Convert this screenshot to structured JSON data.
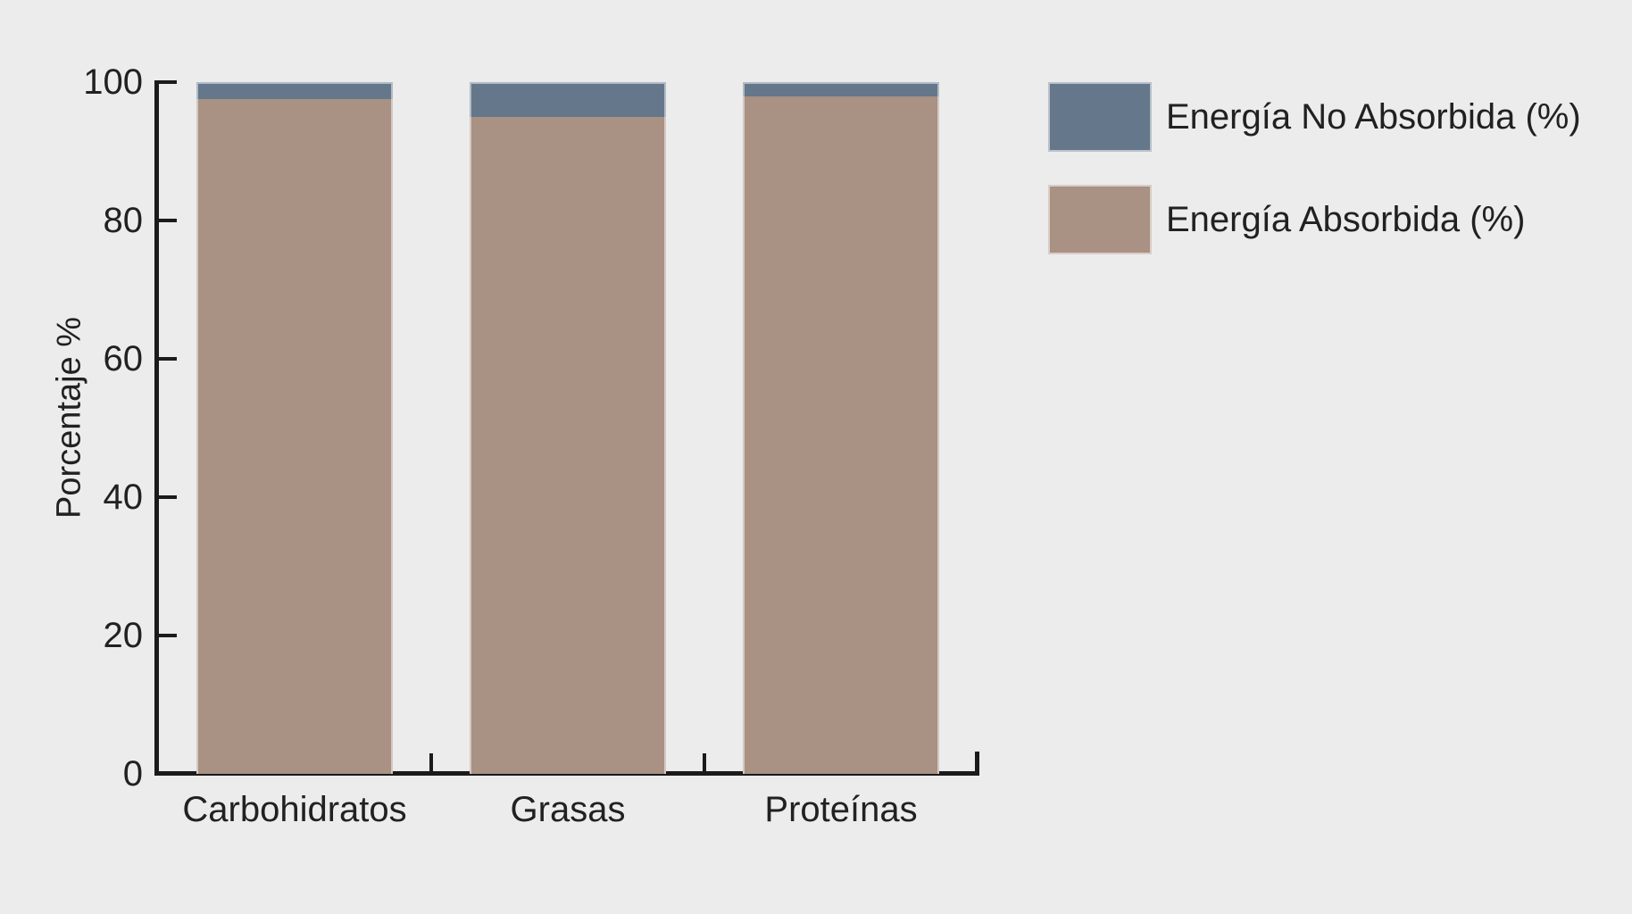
{
  "colors": {
    "background": "#ececec",
    "axis": "#1b1b1b",
    "text": "#212121",
    "no_absorbida": "#64778b",
    "absorbida": "#a99184"
  },
  "chart_data": {
    "type": "bar",
    "stacked": true,
    "title": "",
    "xlabel": "",
    "ylabel": "Porcentaje %",
    "categories": [
      "Carbohidratos",
      "Grasas",
      "Proteínas"
    ],
    "series": [
      {
        "name": "Energía Absorbida (%)",
        "color": "#a99184",
        "values": [
          97.5,
          95.0,
          98.0
        ]
      },
      {
        "name": "Energía No Absorbida (%)",
        "color": "#64778b",
        "values": [
          2.5,
          5.0,
          2.0
        ]
      }
    ],
    "ylim": [
      0,
      100
    ],
    "yticks": [
      0,
      20,
      40,
      60,
      80,
      100
    ],
    "ytick_labels": [
      "0",
      "20",
      "40",
      "60",
      "80",
      "100"
    ],
    "grid": false,
    "legend_position": "top-right",
    "legend_order": [
      "Energía No Absorbida (%)",
      "Energía Absorbida (%)"
    ]
  }
}
